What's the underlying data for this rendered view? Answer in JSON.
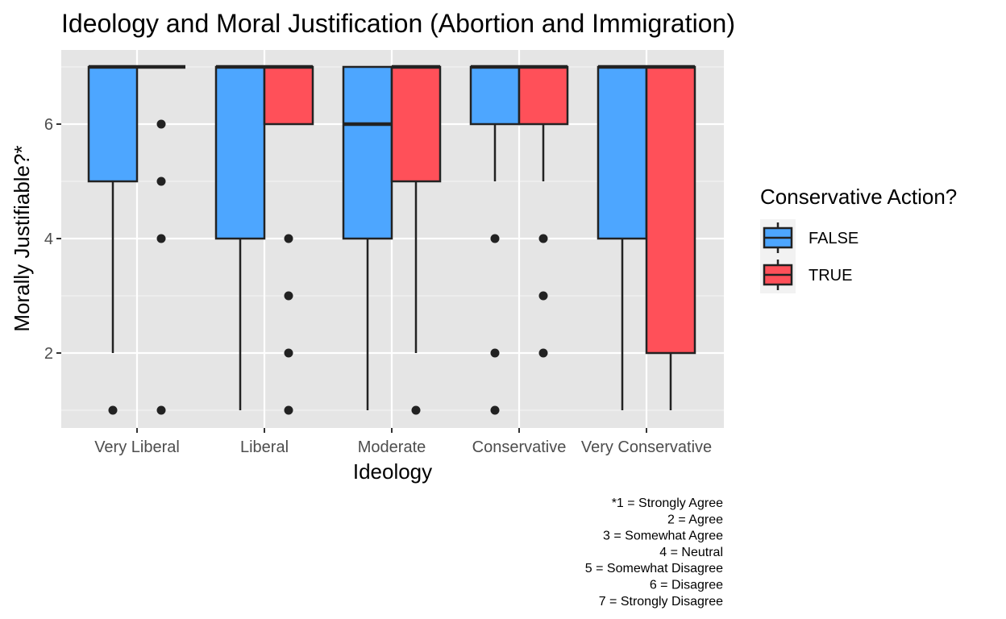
{
  "chart_data": {
    "type": "box",
    "title": "Ideology and Moral Justification (Abortion and Immigration)",
    "xlabel": "Ideology",
    "ylabel": "Morally Justifiable?*",
    "categories": [
      "Very Liberal",
      "Liberal",
      "Moderate",
      "Conservative",
      "Very Conservative"
    ],
    "y_ticks": [
      2,
      4,
      6
    ],
    "ylim": [
      0.7,
      7.3
    ],
    "grid": true,
    "legend": {
      "title": "Conservative Action?",
      "position": "right"
    },
    "series": [
      {
        "name": "FALSE",
        "color": "#4DA6FF",
        "boxes": [
          {
            "lower_whisker": 2,
            "q1": 5,
            "median": 7,
            "q3": 7,
            "upper_whisker": 7,
            "outliers": [
              1
            ]
          },
          {
            "lower_whisker": 1,
            "q1": 4,
            "median": 7,
            "q3": 7,
            "upper_whisker": 7,
            "outliers": []
          },
          {
            "lower_whisker": 1,
            "q1": 4,
            "median": 6,
            "q3": 7,
            "upper_whisker": 7,
            "outliers": []
          },
          {
            "lower_whisker": 5,
            "q1": 6,
            "median": 7,
            "q3": 7,
            "upper_whisker": 7,
            "outliers": [
              4,
              2,
              1
            ]
          },
          {
            "lower_whisker": 1,
            "q1": 4,
            "median": 7,
            "q3": 7,
            "upper_whisker": 7,
            "outliers": []
          }
        ]
      },
      {
        "name": "TRUE",
        "color": "#FF5059",
        "boxes": [
          {
            "lower_whisker": 7,
            "q1": 7,
            "median": 7,
            "q3": 7,
            "upper_whisker": 7,
            "outliers": [
              6,
              5,
              4,
              1
            ]
          },
          {
            "lower_whisker": 6,
            "q1": 6,
            "median": 7,
            "q3": 7,
            "upper_whisker": 7,
            "outliers": [
              4,
              3,
              2,
              1
            ]
          },
          {
            "lower_whisker": 2,
            "q1": 5,
            "median": 7,
            "q3": 7,
            "upper_whisker": 7,
            "outliers": [
              1
            ]
          },
          {
            "lower_whisker": 5,
            "q1": 6,
            "median": 7,
            "q3": 7,
            "upper_whisker": 7,
            "outliers": [
              4,
              3,
              2
            ]
          },
          {
            "lower_whisker": 1,
            "q1": 2,
            "median": 7,
            "q3": 7,
            "upper_whisker": 7,
            "outliers": []
          }
        ]
      }
    ],
    "caption": [
      "*1 = Strongly Agree",
      "2 = Agree",
      "3 = Somewhat Agree",
      "4 = Neutral",
      "5 = Somewhat Disagree",
      "6 = Disagree",
      "7 = Strongly Disagree"
    ],
    "colors": {
      "panel_background": "#E5E5E5",
      "grid": "#FFFFFF",
      "outline": "#222222",
      "tick_text": "#4D4D4D"
    }
  }
}
